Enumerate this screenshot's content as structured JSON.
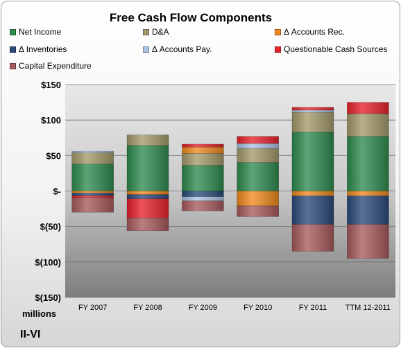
{
  "chart_data": {
    "type": "bar",
    "stacked": true,
    "title": "Free Cash Flow Components",
    "units_label": "millions",
    "company": "II-VI",
    "categories": [
      "FY 2007",
      "FY 2008",
      "FY 2009",
      "FY 2010",
      "FY 2011",
      "TTM 12-2011"
    ],
    "ylim": [
      -150,
      150
    ],
    "yticks": [
      150,
      100,
      50,
      0,
      -50,
      -100,
      -150
    ],
    "ytick_labels": [
      "$150",
      "$100",
      "$50",
      "$-",
      "$(50)",
      "$(100)",
      "$(150)"
    ],
    "legend_position": "top",
    "grid": true,
    "series": [
      {
        "name": "Net Income",
        "color": "#2e8b4f",
        "values": [
          38,
          64,
          36,
          40,
          83,
          77
        ]
      },
      {
        "name": "D&A",
        "color": "#a39a6a",
        "values": [
          16,
          15,
          17,
          20,
          28,
          32
        ]
      },
      {
        "name": "Δ Accounts Rec.",
        "color": "#f0891f",
        "values": [
          -3,
          -5,
          9,
          -21,
          -7,
          -7
        ]
      },
      {
        "name": "Δ Inventories",
        "color": "#2a4a7a",
        "values": [
          -4,
          -6,
          -8,
          0,
          -40,
          -40
        ]
      },
      {
        "name": "Δ Accounts Pay.",
        "color": "#a9c3e3",
        "values": [
          2,
          0,
          -6,
          7,
          3,
          0
        ]
      },
      {
        "name": "Questionable Cash Sources",
        "color": "#e8232b",
        "values": [
          -3,
          -27,
          4,
          10,
          4,
          16
        ]
      },
      {
        "name": "Capital Expenditure",
        "color": "#a85a5c",
        "values": [
          -20,
          -18,
          -14,
          -15,
          -38,
          -48
        ]
      }
    ]
  }
}
